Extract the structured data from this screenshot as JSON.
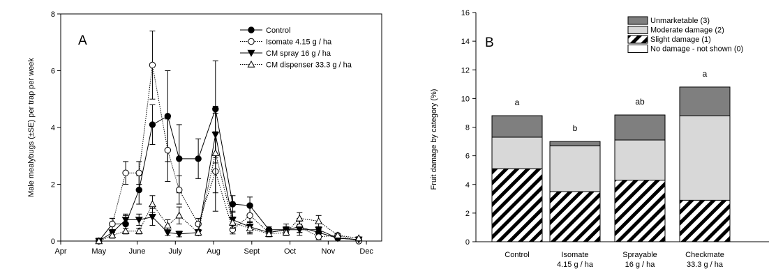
{
  "chart_data": [
    {
      "type": "line",
      "panel_label": "A",
      "ylabel": "Male mealybugs (±SE) per trap per week",
      "ylim": [
        0,
        8
      ],
      "yticks": [
        0,
        2,
        4,
        6,
        8
      ],
      "xlim": [
        0,
        8.4
      ],
      "xticks": [
        "Apr",
        "May",
        "June",
        "July",
        "Aug",
        "Sept",
        "Oct",
        "Nov",
        "Dec"
      ],
      "grid": false,
      "legend_position": "top-right",
      "x": [
        1.0,
        1.35,
        1.7,
        2.05,
        2.4,
        2.8,
        3.1,
        3.6,
        4.05,
        4.5,
        4.95,
        5.45,
        5.9,
        6.25,
        6.75,
        7.25,
        7.8
      ],
      "series": [
        {
          "name": "Control",
          "marker": "filled-circle",
          "y": [
            0.0,
            0.6,
            0.6,
            1.8,
            4.1,
            4.4,
            2.9,
            2.9,
            4.65,
            1.3,
            1.25,
            0.4,
            0.4,
            0.5,
            0.3,
            0.1,
            0.05
          ],
          "err": [
            0.1,
            0.2,
            0.3,
            0.5,
            0.7,
            1.6,
            1.2,
            0.7,
            1.7,
            0.3,
            0.3,
            0.1,
            0.1,
            0.2,
            0.1,
            0.05,
            0.05
          ]
        },
        {
          "name": "Isomate 4.15 g / ha",
          "marker": "open-circle",
          "y": [
            0.0,
            0.6,
            2.4,
            2.4,
            6.2,
            3.2,
            1.8,
            0.6,
            2.45,
            0.4,
            0.9,
            0.3,
            0.4,
            0.5,
            0.15,
            0.2,
            0.0
          ],
          "err": [
            0.1,
            0.2,
            0.4,
            0.4,
            1.2,
            1.1,
            0.5,
            0.2,
            1.4,
            0.15,
            0.3,
            0.1,
            0.2,
            0.3,
            0.1,
            0.05,
            0.05
          ]
        },
        {
          "name": "CM spray 16 g / ha",
          "marker": "filled-triangle-down",
          "y": [
            0.0,
            0.3,
            0.75,
            0.75,
            0.85,
            0.3,
            0.25,
            0.3,
            3.75,
            0.75,
            0.5,
            0.3,
            0.4,
            0.4,
            0.4,
            0.1,
            0.05
          ],
          "err": [
            0.05,
            0.1,
            0.2,
            0.2,
            0.3,
            0.1,
            0.1,
            0.1,
            1.0,
            0.3,
            0.2,
            0.1,
            0.1,
            0.1,
            0.1,
            0.05,
            0.05
          ]
        },
        {
          "name": "CM dispenser 33.3 g / ha",
          "marker": "open-triangle-up",
          "y": [
            0.0,
            0.2,
            0.35,
            0.35,
            1.3,
            0.55,
            0.9,
            0.3,
            3.1,
            0.65,
            0.45,
            0.25,
            0.3,
            0.8,
            0.7,
            0.2,
            0.1
          ],
          "err": [
            0.05,
            0.1,
            0.1,
            0.1,
            0.3,
            0.2,
            0.3,
            0.1,
            1.4,
            0.2,
            0.2,
            0.1,
            0.1,
            0.2,
            0.2,
            0.05,
            0.05
          ]
        }
      ]
    },
    {
      "type": "bar",
      "stacked": true,
      "panel_label": "B",
      "ylabel": "Fruit damage by category (%)",
      "ylim": [
        0,
        16
      ],
      "yticks": [
        0,
        2,
        4,
        6,
        8,
        10,
        12,
        14,
        16
      ],
      "grid": false,
      "legend_position": "top-right",
      "categories": [
        [
          "Control"
        ],
        [
          "Isomate",
          "4.15 g / ha"
        ],
        [
          "Sprayable",
          "16 g / ha"
        ],
        [
          "Checkmate",
          "33.3 g / ha"
        ]
      ],
      "series": [
        {
          "name": "Slight damage (1)",
          "values": [
            5.1,
            3.5,
            4.3,
            2.9
          ],
          "color": "hatch"
        },
        {
          "name": "Moderate damage (2)",
          "values": [
            2.2,
            3.2,
            2.8,
            5.9
          ],
          "color": "#d8d8d8"
        },
        {
          "name": "Unmarketable (3)",
          "values": [
            1.5,
            0.3,
            1.75,
            2.0
          ],
          "color": "#7f7f7f"
        }
      ],
      "legend_entries": [
        "Unmarketable (3)",
        "Moderate damage (2)",
        "Slight damage (1)",
        "No damage - not shown (0)"
      ],
      "significance_letters": [
        "a",
        "b",
        "ab",
        "a"
      ]
    }
  ]
}
